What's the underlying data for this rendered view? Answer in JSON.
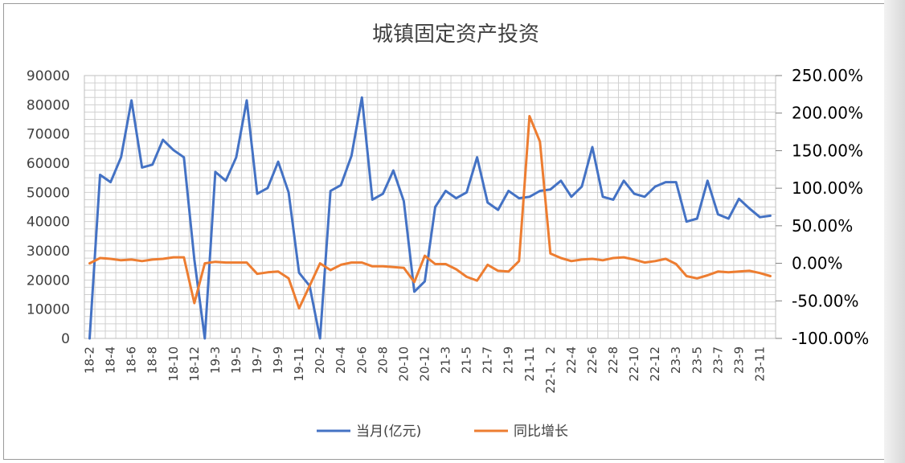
{
  "chart_data": {
    "type": "line",
    "title": "城镇固定资产投资",
    "legend_position": "bottom",
    "grid": true,
    "y_left": {
      "min": 0,
      "max": 90000,
      "step": 10000,
      "tick_labels": [
        "0",
        "10000",
        "20000",
        "30000",
        "40000",
        "50000",
        "60000",
        "70000",
        "80000",
        "90000"
      ]
    },
    "y_right": {
      "min": -1.0,
      "max": 2.5,
      "step": 0.5,
      "tick_labels": [
        "-100.00%",
        "-50.00%",
        "0.00%",
        "50.00%",
        "100.00%",
        "150.00%",
        "200.00%",
        "250.00%"
      ]
    },
    "x": [
      "18-2",
      "18-3",
      "18-4",
      "18-5",
      "18-6",
      "18-7",
      "18-8",
      "18-9",
      "18-10",
      "18-11",
      "18-12",
      "19-2",
      "19-3",
      "19-4",
      "19-5",
      "19-6",
      "19-7",
      "19-8",
      "19-9",
      "19-10",
      "19-11",
      "19-12",
      "20-2",
      "20-3",
      "20-4",
      "20-5",
      "20-6",
      "20-7",
      "20-8",
      "20-9",
      "20-10",
      "20-11",
      "20-12",
      "21-2",
      "21-3",
      "21-4",
      "21-5",
      "21-6",
      "21-7",
      "21-8",
      "21-9",
      "21-10",
      "21-11",
      "21-12",
      "22-1、2",
      "22-3",
      "22-4",
      "22-5",
      "22-6",
      "22-7",
      "22-8",
      "22-9",
      "22-10",
      "22-11",
      "22-12",
      "23-2",
      "23-3",
      "23-4",
      "23-5",
      "23-6",
      "23-7",
      "23-8",
      "23-9",
      "23-10",
      "23-11",
      "23-12"
    ],
    "x_tick_labels": [
      "18-2",
      "18-4",
      "18-6",
      "18-8",
      "18-10",
      "18-12",
      "19-3",
      "19-5",
      "19-7",
      "19-9",
      "19-11",
      "20-2",
      "20-4",
      "20-6",
      "20-8",
      "20-10",
      "20-12",
      "21-3",
      "21-5",
      "21-7",
      "21-9",
      "21-11",
      "22-1、2",
      "22-4",
      "22-6",
      "22-8",
      "22-10",
      "22-12",
      "23-3",
      "23-5",
      "23-7",
      "23-9",
      "23-11"
    ],
    "series": [
      {
        "name": "当月(亿元)",
        "axis": "left",
        "color": "#4472C4",
        "values": [
          0,
          56000,
          53500,
          62000,
          81500,
          58500,
          59500,
          68000,
          64500,
          62000,
          27000,
          0,
          57000,
          54000,
          62000,
          81500,
          49500,
          51500,
          60500,
          50000,
          22500,
          18000,
          0,
          50500,
          52500,
          62500,
          82500,
          47500,
          49500,
          57500,
          47000,
          16000,
          19500,
          45000,
          50500,
          48000,
          50000,
          62000,
          46500,
          44000,
          50500,
          48000,
          48500,
          50500,
          51000,
          54000,
          48500,
          52000,
          65500,
          48500,
          47500,
          54000,
          49500,
          48500,
          52000,
          53500,
          53500,
          40000,
          41000,
          54000,
          42500,
          41000,
          47800,
          44500,
          41500,
          42000
        ]
      },
      {
        "name": "同比增长",
        "axis": "right",
        "color": "#ED7D31",
        "values": [
          0.0,
          0.07,
          0.06,
          0.04,
          0.05,
          0.03,
          0.05,
          0.06,
          0.08,
          0.08,
          -0.53,
          0.0,
          0.02,
          0.01,
          0.01,
          0.01,
          -0.14,
          -0.12,
          -0.11,
          -0.2,
          -0.6,
          -0.3,
          0.0,
          -0.09,
          -0.02,
          0.01,
          0.01,
          -0.04,
          -0.04,
          -0.05,
          -0.06,
          -0.25,
          0.1,
          -0.01,
          -0.01,
          -0.08,
          -0.18,
          -0.23,
          -0.02,
          -0.1,
          -0.11,
          0.03,
          1.96,
          1.62,
          0.13,
          0.07,
          0.03,
          0.05,
          0.06,
          0.04,
          0.07,
          0.08,
          0.05,
          0.01,
          0.03,
          0.06,
          -0.01,
          -0.17,
          -0.2,
          -0.16,
          -0.11,
          -0.12,
          -0.11,
          -0.1,
          -0.13,
          -0.17
        ]
      }
    ]
  }
}
